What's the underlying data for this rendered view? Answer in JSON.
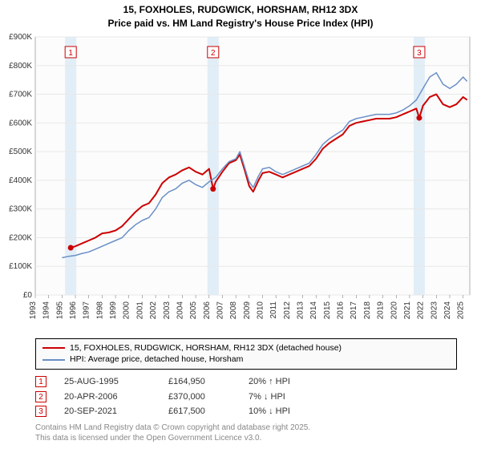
{
  "title_line1": "15, FOXHOLES, RUDGWICK, HORSHAM, RH12 3DX",
  "title_line2": "Price paid vs. HM Land Registry's House Price Index (HPI)",
  "chart": {
    "type": "line",
    "background_color": "#fcfcfc",
    "grid_color": "#e8e8e8",
    "axis_color": "#666666",
    "x_years": [
      1993,
      1994,
      1995,
      1996,
      1997,
      1998,
      1999,
      2000,
      2001,
      2002,
      2003,
      2004,
      2005,
      2006,
      2007,
      2008,
      2009,
      2010,
      2011,
      2012,
      2013,
      2014,
      2015,
      2016,
      2017,
      2018,
      2019,
      2020,
      2021,
      2022,
      2023,
      2024,
      2025
    ],
    "y_min": 0,
    "y_max": 900000,
    "y_tick_step": 100000,
    "y_tick_labels": [
      "£0",
      "£100K",
      "£200K",
      "£300K",
      "£400K",
      "£500K",
      "£600K",
      "£700K",
      "£800K",
      "£900K"
    ],
    "label_fontsize": 10,
    "series": [
      {
        "name": "price_paid",
        "stroke": "#cc0000",
        "stroke_width": 2,
        "points": [
          [
            1995.65,
            164950
          ],
          [
            1996,
            170000
          ],
          [
            1996.5,
            180000
          ],
          [
            1997,
            190000
          ],
          [
            1997.5,
            200000
          ],
          [
            1998,
            215000
          ],
          [
            1998.5,
            218000
          ],
          [
            1999,
            225000
          ],
          [
            1999.5,
            240000
          ],
          [
            2000,
            265000
          ],
          [
            2000.5,
            290000
          ],
          [
            2001,
            310000
          ],
          [
            2001.5,
            320000
          ],
          [
            2002,
            350000
          ],
          [
            2002.5,
            390000
          ],
          [
            2003,
            410000
          ],
          [
            2003.5,
            420000
          ],
          [
            2004,
            435000
          ],
          [
            2004.5,
            445000
          ],
          [
            2005,
            430000
          ],
          [
            2005.5,
            420000
          ],
          [
            2006,
            440000
          ],
          [
            2006.3,
            370000
          ],
          [
            2006.5,
            395000
          ],
          [
            2007,
            430000
          ],
          [
            2007.5,
            460000
          ],
          [
            2008,
            470000
          ],
          [
            2008.3,
            490000
          ],
          [
            2008.7,
            430000
          ],
          [
            2009,
            380000
          ],
          [
            2009.3,
            360000
          ],
          [
            2009.7,
            400000
          ],
          [
            2010,
            425000
          ],
          [
            2010.5,
            430000
          ],
          [
            2011,
            420000
          ],
          [
            2011.5,
            410000
          ],
          [
            2012,
            420000
          ],
          [
            2012.5,
            430000
          ],
          [
            2013,
            440000
          ],
          [
            2013.5,
            450000
          ],
          [
            2014,
            475000
          ],
          [
            2014.5,
            510000
          ],
          [
            2015,
            530000
          ],
          [
            2015.5,
            545000
          ],
          [
            2016,
            560000
          ],
          [
            2016.5,
            590000
          ],
          [
            2017,
            600000
          ],
          [
            2017.5,
            605000
          ],
          [
            2018,
            610000
          ],
          [
            2018.5,
            615000
          ],
          [
            2019,
            615000
          ],
          [
            2019.5,
            615000
          ],
          [
            2020,
            620000
          ],
          [
            2020.5,
            630000
          ],
          [
            2021,
            640000
          ],
          [
            2021.5,
            650000
          ],
          [
            2021.72,
            617500
          ],
          [
            2022,
            660000
          ],
          [
            2022.5,
            690000
          ],
          [
            2023,
            700000
          ],
          [
            2023.5,
            665000
          ],
          [
            2024,
            655000
          ],
          [
            2024.5,
            665000
          ],
          [
            2025,
            690000
          ],
          [
            2025.3,
            680000
          ]
        ]
      },
      {
        "name": "hpi",
        "stroke": "#6a8fc7",
        "stroke_width": 1.5,
        "points": [
          [
            1995,
            130000
          ],
          [
            1995.5,
            135000
          ],
          [
            1996,
            138000
          ],
          [
            1996.5,
            145000
          ],
          [
            1997,
            150000
          ],
          [
            1997.5,
            160000
          ],
          [
            1998,
            170000
          ],
          [
            1998.5,
            180000
          ],
          [
            1999,
            190000
          ],
          [
            1999.5,
            200000
          ],
          [
            2000,
            225000
          ],
          [
            2000.5,
            245000
          ],
          [
            2001,
            260000
          ],
          [
            2001.5,
            270000
          ],
          [
            2002,
            300000
          ],
          [
            2002.5,
            340000
          ],
          [
            2003,
            360000
          ],
          [
            2003.5,
            370000
          ],
          [
            2004,
            390000
          ],
          [
            2004.5,
            400000
          ],
          [
            2005,
            385000
          ],
          [
            2005.5,
            375000
          ],
          [
            2006,
            395000
          ],
          [
            2006.5,
            410000
          ],
          [
            2007,
            440000
          ],
          [
            2007.5,
            465000
          ],
          [
            2008,
            475000
          ],
          [
            2008.3,
            500000
          ],
          [
            2008.7,
            440000
          ],
          [
            2009,
            395000
          ],
          [
            2009.3,
            375000
          ],
          [
            2009.7,
            415000
          ],
          [
            2010,
            440000
          ],
          [
            2010.5,
            445000
          ],
          [
            2011,
            430000
          ],
          [
            2011.5,
            420000
          ],
          [
            2012,
            430000
          ],
          [
            2012.5,
            440000
          ],
          [
            2013,
            450000
          ],
          [
            2013.5,
            460000
          ],
          [
            2014,
            490000
          ],
          [
            2014.5,
            525000
          ],
          [
            2015,
            545000
          ],
          [
            2015.5,
            560000
          ],
          [
            2016,
            575000
          ],
          [
            2016.5,
            605000
          ],
          [
            2017,
            615000
          ],
          [
            2017.5,
            620000
          ],
          [
            2018,
            625000
          ],
          [
            2018.5,
            630000
          ],
          [
            2019,
            630000
          ],
          [
            2019.5,
            630000
          ],
          [
            2020,
            635000
          ],
          [
            2020.5,
            645000
          ],
          [
            2021,
            660000
          ],
          [
            2021.5,
            680000
          ],
          [
            2022,
            720000
          ],
          [
            2022.5,
            760000
          ],
          [
            2023,
            775000
          ],
          [
            2023.5,
            735000
          ],
          [
            2024,
            720000
          ],
          [
            2024.5,
            735000
          ],
          [
            2025,
            760000
          ],
          [
            2025.3,
            745000
          ]
        ]
      }
    ],
    "sale_markers": [
      {
        "num": "1",
        "x": 1995.65,
        "y": 164950,
        "dot_color": "#cc0000"
      },
      {
        "num": "2",
        "x": 2006.3,
        "y": 370000,
        "dot_color": "#cc0000"
      },
      {
        "num": "3",
        "x": 2021.72,
        "y": 617500,
        "dot_color": "#cc0000"
      }
    ],
    "band_color": "#d6e8f5",
    "marker_box_border": "#cc0000",
    "marker_box_fill": "#ffffff"
  },
  "legend": {
    "series1_color": "#cc0000",
    "series1_label": "15, FOXHOLES, RUDGWICK, HORSHAM, RH12 3DX (detached house)",
    "series2_color": "#6a8fc7",
    "series2_label": "HPI: Average price, detached house, Horsham"
  },
  "sales": [
    {
      "num": "1",
      "date": "25-AUG-1995",
      "price": "£164,950",
      "ratio": "20% ↑ HPI"
    },
    {
      "num": "2",
      "date": "20-APR-2006",
      "price": "£370,000",
      "ratio": "7% ↓ HPI"
    },
    {
      "num": "3",
      "date": "20-SEP-2021",
      "price": "£617,500",
      "ratio": "10% ↓ HPI"
    }
  ],
  "footer_line1": "Contains HM Land Registry data © Crown copyright and database right 2025.",
  "footer_line2": "This data is licensed under the Open Government Licence v3.0."
}
